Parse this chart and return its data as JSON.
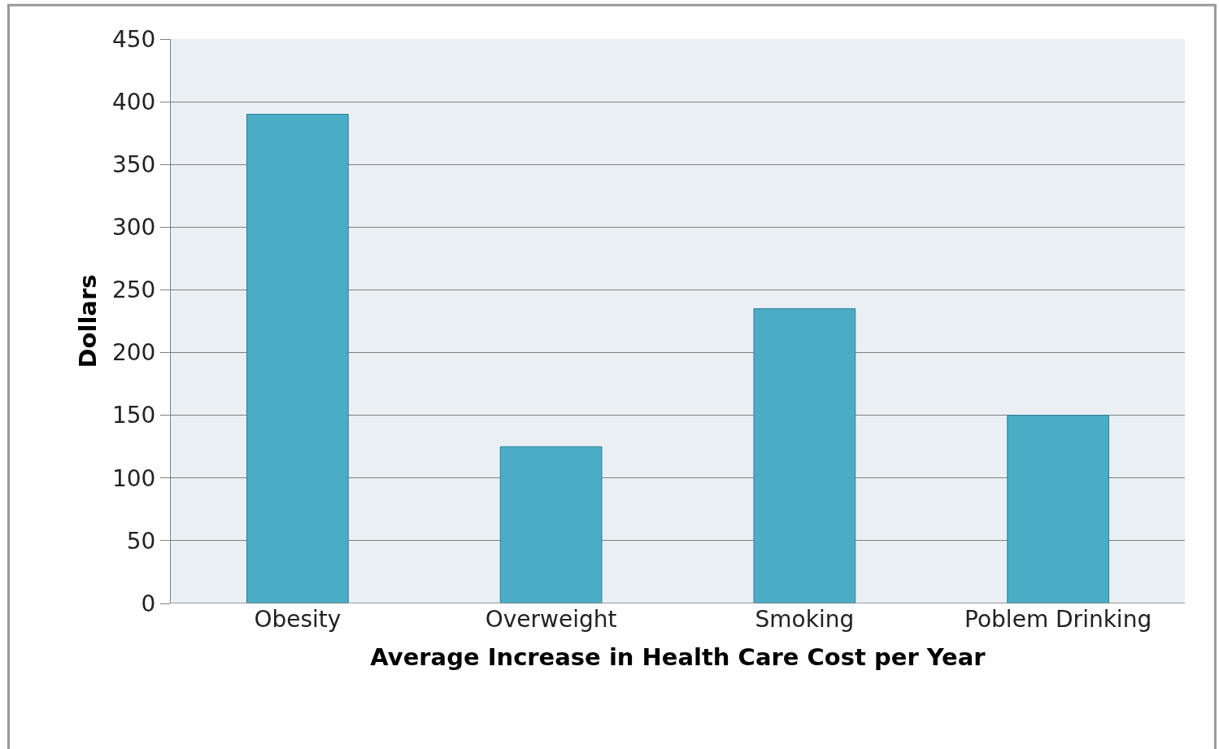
{
  "chart_data": {
    "type": "bar",
    "xlabel": "Average Increase in Health Care Cost per Year",
    "ylabel": "Dollars",
    "categories": [
      "Obesity",
      "Overweight",
      "Smoking",
      "Poblem Drinking"
    ],
    "values": [
      390,
      125,
      235,
      150
    ],
    "color": "#4bacc6",
    "ylim": [
      0,
      450
    ],
    "yticks": [
      0,
      50,
      100,
      150,
      200,
      250,
      300,
      350,
      400,
      450
    ],
    "grid": "y",
    "legend": false
  }
}
